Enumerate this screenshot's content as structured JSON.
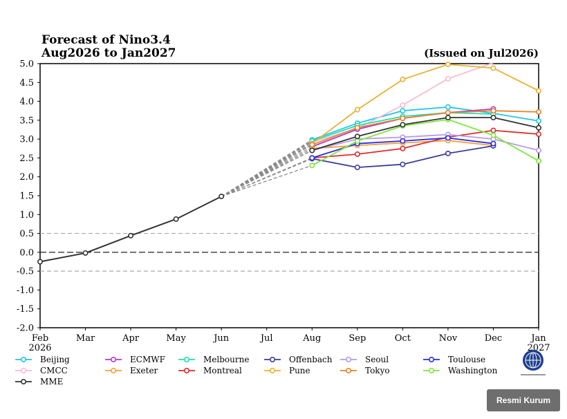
{
  "chart_data": {
    "type": "line",
    "title_line1": "Forecast of Nino3.4",
    "title_line2": "Aug2026 to Jan2027",
    "issued": "(Issued on Jul2026)",
    "ylim": [
      -2.0,
      5.0
    ],
    "yticks": [
      "5.0",
      "4.5",
      "4.0",
      "3.5",
      "3.0",
      "2.5",
      "2.0",
      "1.5",
      "1.0",
      "0.5",
      "0.0",
      "-0.5",
      "-1.0",
      "-1.5",
      "-2.0"
    ],
    "x_labels": [
      "Feb",
      "Mar",
      "Apr",
      "May",
      "Jun",
      "Jul",
      "Aug",
      "Sep",
      "Oct",
      "Nov",
      "Dec",
      "Jan"
    ],
    "x_year_start": "2026",
    "x_year_end": "2027",
    "dashed_reference_lines": [
      0.5,
      -0.5
    ],
    "observed": {
      "color": "#333333",
      "values": [
        -0.25,
        -0.02,
        0.44,
        0.88,
        1.48
      ]
    },
    "series": [
      {
        "name": "Beijing",
        "color": "#1ec8e8",
        "values": [
          2.98,
          3.42,
          3.75,
          3.85,
          3.68,
          3.48
        ]
      },
      {
        "name": "CMCC",
        "color": "#f7bcd0",
        "values": [
          2.92,
          3.28,
          3.9,
          4.6,
          5.02
        ]
      },
      {
        "name": "ECMWF",
        "color": "#b838d0",
        "values": [
          2.8,
          3.26,
          3.55,
          3.7,
          3.8
        ]
      },
      {
        "name": "Exeter",
        "color": "#f5a030",
        "values": [
          2.75,
          2.83,
          2.9,
          2.96,
          2.83
        ]
      },
      {
        "name": "Melbourne",
        "color": "#22ddb0",
        "values": [
          2.95,
          3.36,
          3.6,
          3.7,
          3.66
        ]
      },
      {
        "name": "Montreal",
        "color": "#e02a2a",
        "values": [
          2.5,
          2.6,
          2.75,
          3.05,
          3.23,
          3.13
        ]
      },
      {
        "name": "Offenbach",
        "color": "#3a3aa0",
        "values": [
          2.48,
          2.25,
          2.33,
          2.62,
          2.82
        ]
      },
      {
        "name": "Pune",
        "color": "#e8b030",
        "values": [
          2.88,
          3.78,
          4.58,
          4.98,
          4.88,
          4.28
        ]
      },
      {
        "name": "Seoul",
        "color": "#b49ae8",
        "values": [
          2.7,
          3.0,
          3.05,
          3.12,
          3.0,
          2.7
        ]
      },
      {
        "name": "Tokyo",
        "color": "#e8802a",
        "values": [
          2.85,
          3.3,
          3.55,
          3.7,
          3.75,
          3.72
        ]
      },
      {
        "name": "Toulouse",
        "color": "#2a2ae8",
        "values": [
          2.5,
          2.88,
          2.95,
          3.03,
          2.88
        ]
      },
      {
        "name": "Washington",
        "color": "#7ae83a",
        "values": [
          2.3,
          2.95,
          3.35,
          3.52,
          3.1,
          2.42
        ]
      },
      {
        "name": "MME",
        "color": "#333333",
        "values": [
          2.7,
          3.07,
          3.38,
          3.57,
          3.57,
          3.3
        ]
      }
    ]
  },
  "badge": {
    "label": "Resmi Kurum"
  }
}
